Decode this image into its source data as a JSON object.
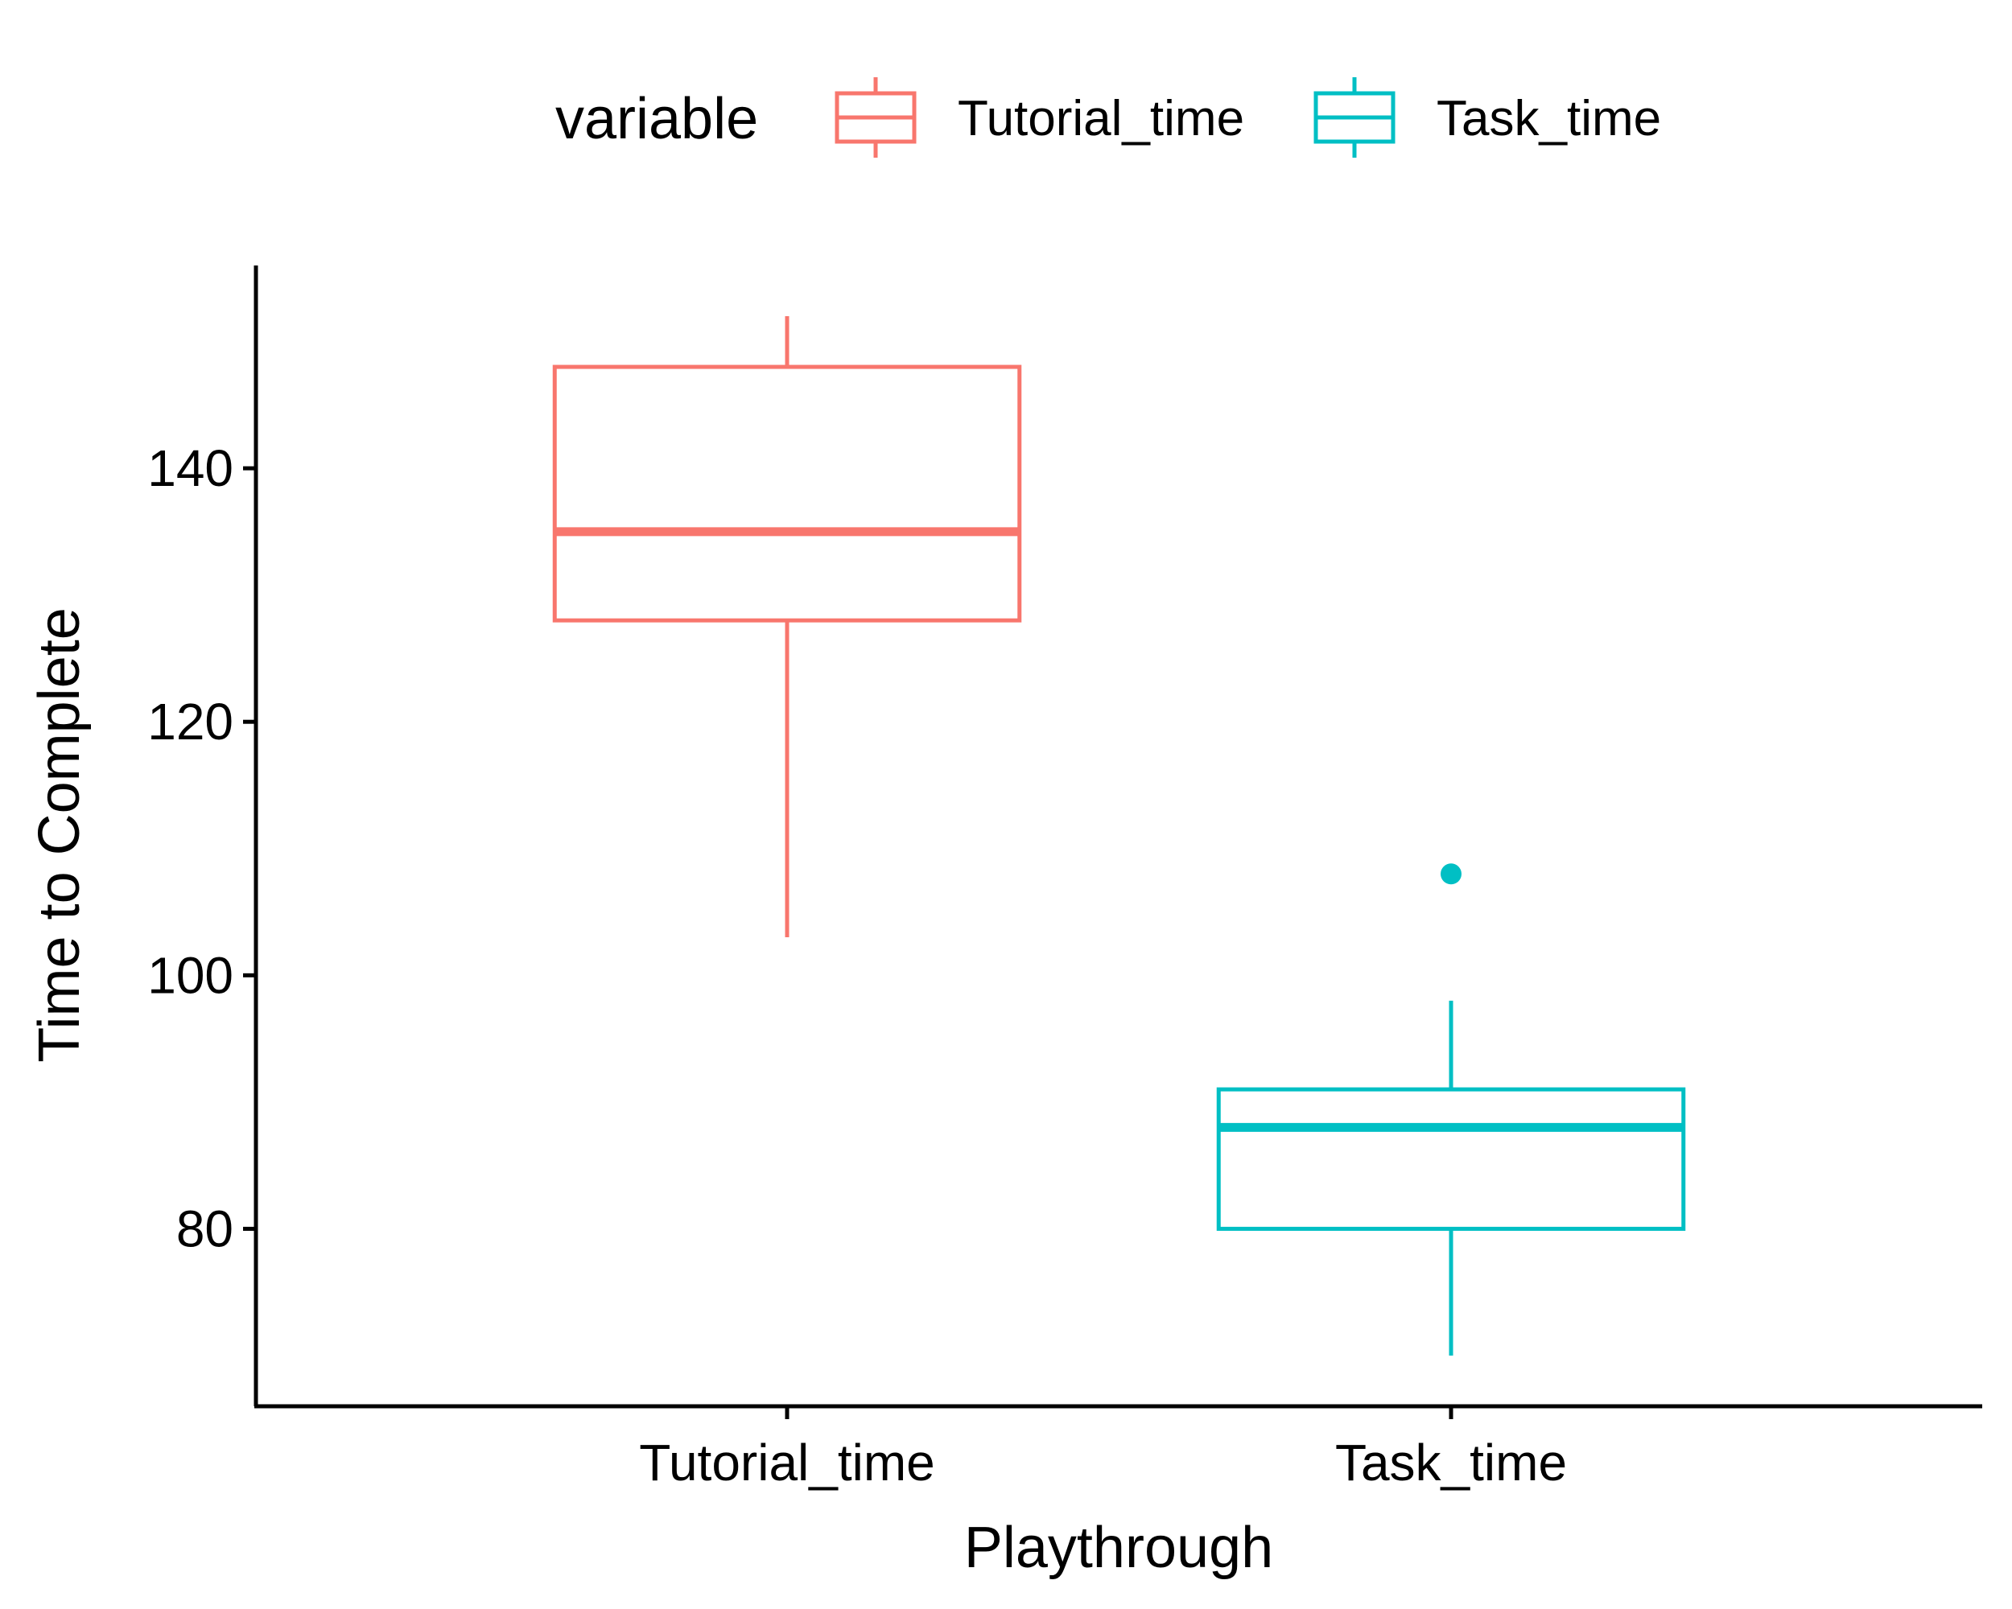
{
  "chart_data": {
    "type": "boxplot",
    "xlabel": "Playthrough",
    "ylabel": "Time to Complete",
    "categories": [
      "Tutorial_time",
      "Task_time"
    ],
    "ylim": [
      66,
      156
    ],
    "yticks": [
      80,
      100,
      120,
      140
    ],
    "legend": {
      "title": "variable",
      "position": "top",
      "entries": [
        "Tutorial_time",
        "Task_time"
      ]
    },
    "series": [
      {
        "name": "Tutorial_time",
        "color": "#F8766D",
        "whisker_low": 103,
        "q1": 128,
        "median": 135,
        "q3": 148,
        "whisker_high": 152,
        "outliers": []
      },
      {
        "name": "Task_time",
        "color": "#00BFC4",
        "whisker_low": 70,
        "q1": 80,
        "median": 88,
        "q3": 91,
        "whisker_high": 98,
        "outliers": [
          108
        ]
      }
    ],
    "grid": false
  }
}
